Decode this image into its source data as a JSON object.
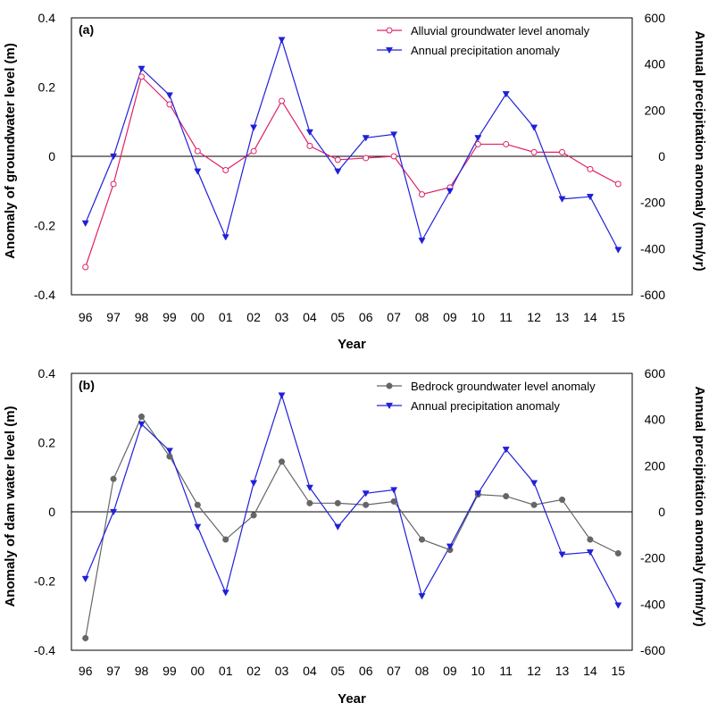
{
  "chart_data": [
    {
      "type": "line",
      "panel_label": "(a)",
      "categories": [
        "96",
        "97",
        "98",
        "99",
        "00",
        "01",
        "02",
        "03",
        "04",
        "05",
        "06",
        "07",
        "08",
        "09",
        "10",
        "11",
        "12",
        "13",
        "14",
        "15"
      ],
      "xlabel": "Year",
      "ylabel": "Anomaly of groundwater level (m)",
      "ylabel_right": "Annual precipitation anomaly (mm/yr)",
      "ylim": [
        -0.4,
        0.4
      ],
      "ylim_right": [
        -600,
        600
      ],
      "yticks": [
        "0.4",
        "0.2",
        "0",
        "-0.2",
        "-0.4"
      ],
      "yticks_right": [
        "600",
        "400",
        "200",
        "0",
        "-200",
        "-400",
        "-600"
      ],
      "series": [
        {
          "name": "Alluvial groundwater level anomaly",
          "axis": "left",
          "color": "#e0206a",
          "marker": "open-circle",
          "values": [
            -0.32,
            -0.08,
            0.23,
            0.15,
            0.015,
            -0.04,
            0.015,
            0.16,
            0.03,
            -0.01,
            -0.005,
            0.0,
            -0.11,
            -0.09,
            0.035,
            0.035,
            0.012,
            0.012,
            -0.037,
            -0.08
          ]
        },
        {
          "name": "Annual precipitation anomaly",
          "axis": "right",
          "color": "#2020d8",
          "marker": "filled-triangle-down",
          "values": [
            -290,
            0,
            380,
            265,
            -65,
            -350,
            125,
            505,
            105,
            -65,
            80,
            95,
            -365,
            -150,
            80,
            270,
            125,
            -185,
            -175,
            -405
          ]
        }
      ]
    },
    {
      "type": "line",
      "panel_label": "(b)",
      "categories": [
        "96",
        "97",
        "98",
        "99",
        "00",
        "01",
        "02",
        "03",
        "04",
        "05",
        "06",
        "07",
        "08",
        "09",
        "10",
        "11",
        "12",
        "13",
        "14",
        "15"
      ],
      "xlabel": "Year",
      "ylabel": "Anomaly of dam water level (m)",
      "ylabel_right": "Annual precipitation anomaly (mm/yr)",
      "ylim": [
        -0.4,
        0.4
      ],
      "ylim_right": [
        -600,
        600
      ],
      "yticks": [
        "0.4",
        "0.2",
        "0",
        "-0.2",
        "-0.4"
      ],
      "yticks_right": [
        "600",
        "400",
        "200",
        "0",
        "-200",
        "-400",
        "-600"
      ],
      "series": [
        {
          "name": "Bedrock groundwater level anomaly",
          "axis": "left",
          "color": "#666666",
          "marker": "filled-circle",
          "values": [
            -0.365,
            0.095,
            0.275,
            0.16,
            0.02,
            -0.08,
            -0.01,
            0.145,
            0.025,
            0.025,
            0.02,
            0.03,
            -0.08,
            -0.11,
            0.05,
            0.045,
            0.02,
            0.035,
            -0.08,
            -0.12
          ]
        },
        {
          "name": "Annual precipitation anomaly",
          "axis": "right",
          "color": "#2020d8",
          "marker": "filled-triangle-down",
          "values": [
            -290,
            0,
            380,
            265,
            -65,
            -350,
            125,
            505,
            105,
            -65,
            80,
            95,
            -365,
            -150,
            80,
            270,
            125,
            -185,
            -175,
            -405
          ]
        }
      ]
    }
  ]
}
